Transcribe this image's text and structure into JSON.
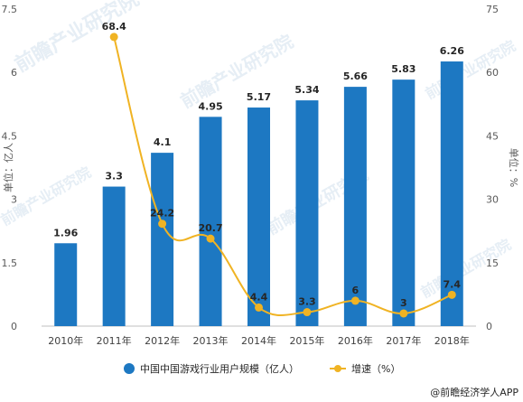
{
  "chart_data": {
    "type": "bar",
    "categories": [
      "2010年",
      "2011年",
      "2012年",
      "2013年",
      "2014年",
      "2015年",
      "2016年",
      "2017年",
      "2018年"
    ],
    "series": [
      {
        "name": "中国中国游戏行业用户规模（亿人）",
        "type": "bar",
        "axis": "left",
        "color": "#1d78c2",
        "values": [
          1.96,
          3.3,
          4.1,
          4.95,
          5.17,
          5.34,
          5.66,
          5.83,
          6.26
        ],
        "labels": [
          "1.96",
          "3.3",
          "4.1",
          "4.95",
          "5.17",
          "5.34",
          "5.66",
          "5.83",
          "6.26"
        ]
      },
      {
        "name": "增速（%）",
        "type": "line",
        "axis": "right",
        "color": "#f0b323",
        "values": [
          null,
          68.4,
          24.2,
          20.7,
          4.4,
          3.3,
          6,
          3,
          7.4
        ],
        "labels": [
          "",
          "68.4",
          "24.2",
          "20.7",
          "4.4",
          "3.3",
          "6",
          "3",
          "7.4"
        ]
      }
    ],
    "ylabel_left": "单位：亿人",
    "ylabel_right": "单位：%",
    "ylim_left": [
      0,
      7.5
    ],
    "ylim_right": [
      0,
      75
    ],
    "yticks_left": [
      "0",
      "1.5",
      "3",
      "4.5",
      "6",
      "7.5"
    ],
    "yticks_right": [
      "0",
      "15",
      "30",
      "45",
      "60",
      "75"
    ],
    "grid": false,
    "legend_position": "bottom"
  },
  "source": "@前瞻经济学人APP",
  "watermark": "前瞻产业研究院"
}
